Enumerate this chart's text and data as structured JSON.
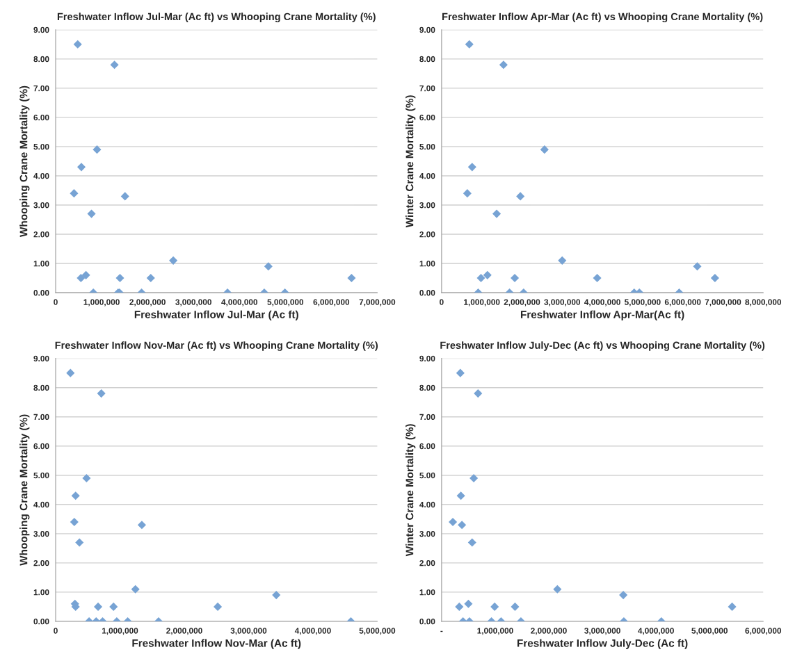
{
  "chart_data": [
    {
      "type": "scatter",
      "title": "Freshwater Inflow Jul-Mar (Ac ft) vs Whooping Crane Mortality (%)",
      "xlabel": "Freshwater Inflow Jul-Mar (Ac ft)",
      "ylabel": "Whooping Crane Mortality (%)",
      "marker": "diamond",
      "grid": "y",
      "legend": false,
      "series": [
        {
          "color": "#77a3d4",
          "x": [
            480000,
            1280000,
            900000,
            560000,
            400000,
            1510000,
            780000,
            2560000,
            4630000,
            550000,
            660000,
            1400000,
            2070000,
            6440000,
            820000,
            1360000,
            1390000,
            1870000,
            3740000,
            4540000,
            4990000
          ],
          "values": [
            8.5,
            7.8,
            4.9,
            4.3,
            3.4,
            3.3,
            2.7,
            1.1,
            0.9,
            0.5,
            0.6,
            0.5,
            0.5,
            0.5,
            0,
            0,
            0,
            0,
            0,
            0,
            0
          ]
        }
      ],
      "xlim": [
        0,
        7000000
      ],
      "xticks": [
        {
          "value": 0,
          "label": "0"
        },
        {
          "value": 1000000,
          "label": "1,000,000"
        },
        {
          "value": 2000000,
          "label": "2,000,000"
        },
        {
          "value": 3000000,
          "label": "3,000,000"
        },
        {
          "value": 4000000,
          "label": "4,000,000"
        },
        {
          "value": 5000000,
          "label": "5,000,000"
        },
        {
          "value": 6000000,
          "label": "6,000,000"
        },
        {
          "value": 7000000,
          "label": "7,000,000"
        }
      ],
      "ylim": [
        0,
        9
      ],
      "yticks": [
        {
          "value": 0,
          "label": "0.00"
        },
        {
          "value": 1,
          "label": "1.00"
        },
        {
          "value": 2,
          "label": "2.00"
        },
        {
          "value": 3,
          "label": "3.00"
        },
        {
          "value": 4,
          "label": "4.00"
        },
        {
          "value": 5,
          "label": "5.00"
        },
        {
          "value": 6,
          "label": "6.00"
        },
        {
          "value": 7,
          "label": "7.00"
        },
        {
          "value": 8,
          "label": "8.00"
        },
        {
          "value": 9,
          "label": "9.00"
        }
      ]
    },
    {
      "type": "scatter",
      "title": "Freshwater Inflow Apr-Mar (Ac ft) vs Whooping Crane Mortality (%)",
      "xlabel": "Freshwater Inflow Apr-Mar(Ac ft)",
      "ylabel": "Winter Crane Mortality (%)",
      "marker": "diamond",
      "grid": "y",
      "legend": false,
      "series": [
        {
          "color": "#77a3d4",
          "x": [
            690000,
            1540000,
            2560000,
            760000,
            640000,
            1960000,
            1370000,
            3000000,
            6360000,
            980000,
            1140000,
            1820000,
            3870000,
            6800000,
            910000,
            1690000,
            2040000,
            4790000,
            4920000,
            5910000
          ],
          "values": [
            8.5,
            7.8,
            4.9,
            4.3,
            3.4,
            3.3,
            2.7,
            1.1,
            0.9,
            0.5,
            0.6,
            0.5,
            0.5,
            0.5,
            0,
            0,
            0,
            0,
            0,
            0
          ]
        }
      ],
      "xlim": [
        0,
        8000000
      ],
      "xticks": [
        {
          "value": 0,
          "label": "0"
        },
        {
          "value": 1000000,
          "label": "1,000,000"
        },
        {
          "value": 2000000,
          "label": "2,000,000"
        },
        {
          "value": 3000000,
          "label": "3,000,000"
        },
        {
          "value": 4000000,
          "label": "4,000,000"
        },
        {
          "value": 5000000,
          "label": "5,000,000"
        },
        {
          "value": 6000000,
          "label": "6,000,000"
        },
        {
          "value": 7000000,
          "label": "7,000,000"
        },
        {
          "value": 8000000,
          "label": "8,000,000"
        }
      ],
      "ylim": [
        0,
        9
      ],
      "yticks": [
        {
          "value": 0,
          "label": "0.00"
        },
        {
          "value": 1,
          "label": "1.00"
        },
        {
          "value": 2,
          "label": "2.00"
        },
        {
          "value": 3,
          "label": "3.00"
        },
        {
          "value": 4,
          "label": "4.00"
        },
        {
          "value": 5,
          "label": "5.00"
        },
        {
          "value": 6,
          "label": "6.00"
        },
        {
          "value": 7,
          "label": "7.00"
        },
        {
          "value": 8,
          "label": "8.00"
        },
        {
          "value": 9,
          "label": "9.00"
        }
      ]
    },
    {
      "type": "scatter",
      "title": "Freshwater Inflow Nov-Mar (Ac ft) vs Whooping Crane Mortality (%)",
      "xlabel": "Freshwater Inflow Nov-Mar (Ac ft)",
      "ylabel": "Whooping Crane Mortality (%)",
      "marker": "diamond",
      "grid": "y",
      "legend": false,
      "series": [
        {
          "color": "#77a3d4",
          "x": [
            230000,
            710000,
            480000,
            310000,
            290000,
            1340000,
            370000,
            1240000,
            3430000,
            300000,
            310000,
            660000,
            900000,
            2520000,
            520000,
            630000,
            730000,
            950000,
            1120000,
            1600000,
            4590000
          ],
          "values": [
            8.5,
            7.8,
            4.9,
            4.3,
            3.4,
            3.3,
            2.7,
            1.1,
            0.9,
            0.6,
            0.5,
            0.5,
            0.5,
            0.5,
            0,
            0,
            0,
            0,
            0,
            0,
            0
          ]
        }
      ],
      "xlim": [
        0,
        5000000
      ],
      "xticks": [
        {
          "value": 0,
          "label": "0"
        },
        {
          "value": 1000000,
          "label": "1,000,000"
        },
        {
          "value": 2000000,
          "label": "2,000,000"
        },
        {
          "value": 3000000,
          "label": "3,000,000"
        },
        {
          "value": 4000000,
          "label": "4,000,000"
        },
        {
          "value": 5000000,
          "label": "5,000,000"
        }
      ],
      "ylim": [
        0,
        9
      ],
      "yticks": [
        {
          "value": 0,
          "label": "0.00"
        },
        {
          "value": 1,
          "label": "1.00"
        },
        {
          "value": 2,
          "label": "2.00"
        },
        {
          "value": 3,
          "label": "3.00"
        },
        {
          "value": 4,
          "label": "4.00"
        },
        {
          "value": 5,
          "label": "5.00"
        },
        {
          "value": 6,
          "label": "6.00"
        },
        {
          "value": 7,
          "label": "7.00"
        },
        {
          "value": 8,
          "label": "8.00"
        },
        {
          "value": 9,
          "label": "9.00"
        }
      ]
    },
    {
      "type": "scatter",
      "title": "Freshwater Inflow July-Dec (Ac ft) vs Whooping Crane Mortality (%)",
      "xlabel": "Freshwater Inflow July-Dec (Ac ft)",
      "ylabel": "Winter Crane Mortality (%)",
      "marker": "diamond",
      "grid": "y",
      "legend": false,
      "series": [
        {
          "color": "#77a3d4",
          "x": [
            350000,
            680000,
            600000,
            360000,
            210000,
            380000,
            570000,
            2160000,
            3390000,
            330000,
            500000,
            990000,
            1370000,
            5420000,
            400000,
            520000,
            930000,
            1110000,
            1480000,
            3400000,
            4100000
          ],
          "values": [
            8.5,
            7.8,
            4.9,
            4.3,
            3.4,
            3.3,
            2.7,
            1.1,
            0.9,
            0.5,
            0.6,
            0.5,
            0.5,
            0.5,
            0,
            0,
            0,
            0,
            0,
            0,
            0
          ]
        }
      ],
      "xlim": [
        0,
        6000000
      ],
      "xticks": [
        {
          "value": 0,
          "label": "-"
        },
        {
          "value": 1000000,
          "label": "1,000,000"
        },
        {
          "value": 2000000,
          "label": "2,000,000"
        },
        {
          "value": 3000000,
          "label": "3,000,000"
        },
        {
          "value": 4000000,
          "label": "4,000,000"
        },
        {
          "value": 5000000,
          "label": "5,000,000"
        },
        {
          "value": 6000000,
          "label": "6,000,000"
        }
      ],
      "ylim": [
        0,
        9
      ],
      "yticks": [
        {
          "value": 0,
          "label": "0.00"
        },
        {
          "value": 1,
          "label": "1.00"
        },
        {
          "value": 2,
          "label": "2.00"
        },
        {
          "value": 3,
          "label": "3.00"
        },
        {
          "value": 4,
          "label": "4.00"
        },
        {
          "value": 5,
          "label": "5.00"
        },
        {
          "value": 6,
          "label": "6.00"
        },
        {
          "value": 7,
          "label": "7.00"
        },
        {
          "value": 8,
          "label": "8.00"
        },
        {
          "value": 9,
          "label": "9.00"
        }
      ]
    }
  ]
}
